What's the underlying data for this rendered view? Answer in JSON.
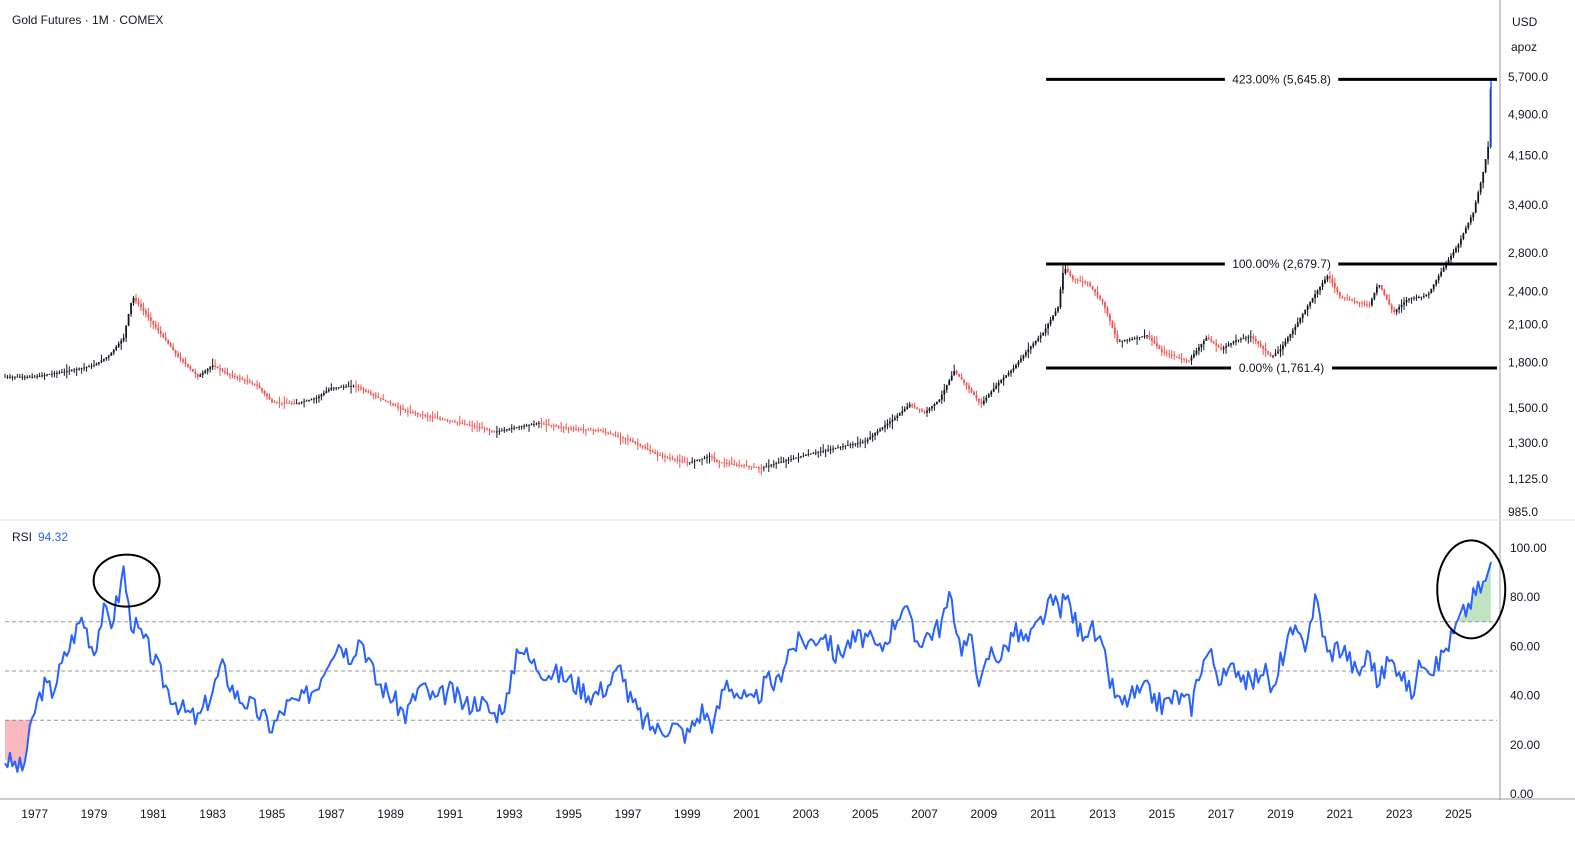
{
  "header": {
    "symbol_label": "Gold Futures · 1M · COMEX",
    "currency": "USD",
    "unit": "apoz"
  },
  "rsi_header": {
    "label": "RSI",
    "value": "94.32"
  },
  "colors": {
    "candle_up": "#26a69a",
    "candle_down": "#ef5350",
    "candle_body_neutral": "#131722",
    "rsi_line": "#2962ff",
    "rsi_value_text": "#2962ff",
    "fib_line": "#000000",
    "dashed_level": "#9598a1",
    "overbought_fill": "#4caf50",
    "oversold_fill": "#f23645",
    "annotation_ellipse": "#000000"
  },
  "chart_data": [
    {
      "type": "line",
      "title": "Gold Futures · 1M · COMEX",
      "ylabel": "USD",
      "unit": "apoz",
      "price_scale": "log",
      "x_range": [
        1976,
        2026.3
      ],
      "ylim": [
        985,
        5700
      ],
      "y_ticks": [
        5700,
        4900,
        4150,
        3400,
        2800,
        2400,
        2100,
        1800,
        1500,
        1300,
        1125,
        985
      ],
      "y_tick_labels": [
        "5,700.0",
        "4,900.0",
        "4,150.0",
        "3,400.0",
        "2,800.0",
        "2,400.0",
        "2,100.0",
        "1,800.0",
        "1,500.0",
        "1,300.0",
        "1,125.0",
        "985.0"
      ],
      "series": [
        {
          "x": [
            1976.0,
            1977.0,
            1978.0,
            1979.0,
            1979.5,
            1980.0,
            1980.3,
            1981.0,
            1981.8,
            1982.5,
            1983.0,
            1983.5,
            1984.5,
            1985.0,
            1985.8,
            1986.5,
            1987.0,
            1987.8,
            1988.5,
            1989.5,
            1990.5,
            1991.5,
            1992.5,
            1993.5,
            1994.0,
            1995.0,
            1996.0,
            1997.0,
            1998.0,
            1999.0,
            1999.8,
            2000.0,
            2001.0,
            2001.5,
            2002.0,
            2003.0,
            2004.0,
            2005.0,
            2006.0,
            2006.5,
            2007.0,
            2007.5,
            2008.0,
            2008.5,
            2008.9,
            2009.5,
            2010.0,
            2010.5,
            2011.0,
            2011.5,
            2011.7,
            2012.0,
            2012.5,
            2013.0,
            2013.5,
            2014.0,
            2014.5,
            2015.0,
            2015.9,
            2016.5,
            2017.0,
            2017.5,
            2018.0,
            2018.7,
            2019.0,
            2019.5,
            2020.0,
            2020.6,
            2021.0,
            2021.5,
            2022.0,
            2022.3,
            2022.8,
            2023.3,
            2023.8,
            2024.0,
            2024.5,
            2025.0,
            2025.5,
            2025.8,
            2026.0,
            2026.1
          ],
          "values": [
            1700,
            1700,
            1735,
            1780,
            1850,
            1990,
            2350,
            2100,
            1850,
            1700,
            1780,
            1720,
            1640,
            1535,
            1525,
            1560,
            1625,
            1640,
            1570,
            1480,
            1440,
            1405,
            1360,
            1395,
            1410,
            1380,
            1370,
            1320,
            1240,
            1200,
            1235,
            1205,
            1185,
            1175,
            1200,
            1240,
            1275,
            1310,
            1440,
            1520,
            1470,
            1550,
            1740,
            1620,
            1520,
            1660,
            1760,
            1900,
            2030,
            2250,
            2650,
            2520,
            2480,
            2300,
            1960,
            1980,
            2010,
            1880,
            1810,
            1990,
            1900,
            1970,
            2000,
            1840,
            1900,
            2080,
            2300,
            2560,
            2350,
            2300,
            2270,
            2480,
            2200,
            2330,
            2350,
            2380,
            2640,
            2900,
            3300,
            3800,
            4300,
            5645.8
          ]
        }
      ],
      "fib_levels": [
        {
          "label": "423.00% (5,645.8)",
          "price": 5645.8
        },
        {
          "label": "100.00% (2,679.7)",
          "price": 2679.7
        },
        {
          "label": "0.00% (1,761.4)",
          "price": 1761.4
        }
      ],
      "fib_x_start": 2011.1
    },
    {
      "type": "line",
      "title": "RSI",
      "current_value": 94.32,
      "ylim": [
        0,
        100
      ],
      "y_ticks": [
        100,
        80,
        60,
        40,
        20,
        0
      ],
      "y_tick_labels": [
        "100.00",
        "80.00",
        "60.00",
        "40.00",
        "20.00",
        "0.00"
      ],
      "levels": [
        70,
        50,
        30
      ],
      "series": [
        {
          "x": [
            1976.0,
            1976.3,
            1976.6,
            1977.0,
            1977.3,
            1977.6,
            1978.0,
            1978.3,
            1978.6,
            1979.0,
            1979.3,
            1979.6,
            1979.9,
            1980.0,
            1980.2,
            1980.5,
            1980.8,
            1981.0,
            1981.5,
            1982.0,
            1982.5,
            1983.0,
            1983.3,
            1983.8,
            1984.3,
            1984.8,
            1985.0,
            1985.5,
            1986.0,
            1986.5,
            1987.0,
            1987.3,
            1987.6,
            1988.0,
            1988.5,
            1989.0,
            1989.5,
            1990.0,
            1990.5,
            1991.0,
            1991.5,
            1992.0,
            1992.5,
            1993.0,
            1993.3,
            1993.7,
            1994.2,
            1994.8,
            1995.3,
            1995.8,
            1996.3,
            1996.8,
            1997.0,
            1997.5,
            1998.0,
            1998.5,
            1999.0,
            1999.5,
            1999.9,
            2000.3,
            2000.8,
            2001.2,
            2001.7,
            2002.0,
            2002.4,
            2002.8,
            2003.2,
            2003.6,
            2004.0,
            2004.5,
            2005.0,
            2005.5,
            2006.0,
            2006.3,
            2006.7,
            2007.0,
            2007.5,
            2007.9,
            2008.2,
            2008.6,
            2008.9,
            2009.2,
            2009.6,
            2010.0,
            2010.5,
            2011.0,
            2011.3,
            2011.6,
            2011.8,
            2012.2,
            2012.6,
            2013.0,
            2013.3,
            2013.6,
            2014.0,
            2014.5,
            2015.0,
            2015.5,
            2016.0,
            2016.3,
            2016.6,
            2017.0,
            2017.5,
            2018.0,
            2018.4,
            2018.8,
            2019.0,
            2019.4,
            2019.8,
            2020.2,
            2020.6,
            2020.9,
            2021.2,
            2021.6,
            2022.0,
            2022.3,
            2022.6,
            2023.0,
            2023.4,
            2023.8,
            2024.2,
            2024.5,
            2024.8,
            2025.0,
            2025.3,
            2025.6,
            2025.9,
            2026.1
          ],
          "values": [
            14,
            12,
            10,
            34,
            44,
            42,
            55,
            64,
            72,
            58,
            74,
            70,
            84,
            92,
            72,
            66,
            60,
            55,
            42,
            34,
            30,
            42,
            52,
            40,
            36,
            30,
            27,
            36,
            38,
            44,
            58,
            62,
            56,
            64,
            46,
            40,
            32,
            44,
            38,
            42,
            36,
            38,
            32,
            40,
            62,
            54,
            50,
            48,
            44,
            40,
            44,
            52,
            40,
            30,
            26,
            28,
            24,
            34,
            28,
            46,
            40,
            36,
            46,
            44,
            58,
            62,
            62,
            66,
            56,
            62,
            64,
            58,
            70,
            78,
            62,
            64,
            68,
            80,
            60,
            62,
            44,
            58,
            56,
            66,
            62,
            72,
            78,
            76,
            80,
            66,
            68,
            58,
            44,
            36,
            40,
            42,
            36,
            40,
            36,
            52,
            58,
            46,
            52,
            44,
            52,
            40,
            54,
            66,
            60,
            80,
            56,
            60,
            58,
            48,
            58,
            44,
            54,
            52,
            40,
            56,
            50,
            58,
            64,
            70,
            76,
            82,
            86,
            94.32
          ]
        }
      ]
    }
  ],
  "x_axis": {
    "tick_labels": [
      "1977",
      "1979",
      "1981",
      "1983",
      "1985",
      "1987",
      "1989",
      "1991",
      "1993",
      "1995",
      "1997",
      "1999",
      "2001",
      "2003",
      "2005",
      "2007",
      "2009",
      "2011",
      "2013",
      "2015",
      "2017",
      "2019",
      "2021",
      "2023",
      "2025"
    ],
    "tick_years": [
      1977,
      1979,
      1981,
      1983,
      1985,
      1987,
      1989,
      1991,
      1993,
      1995,
      1997,
      1999,
      2001,
      2003,
      2005,
      2007,
      2009,
      2011,
      2013,
      2015,
      2017,
      2019,
      2021,
      2023,
      2025
    ]
  },
  "annotations": [
    {
      "name": "rsi-peak-1980-circle",
      "x": 1980.1,
      "rsi": 90
    },
    {
      "name": "rsi-peak-2025-circle",
      "x": 2025.6,
      "rsi": 84
    }
  ]
}
